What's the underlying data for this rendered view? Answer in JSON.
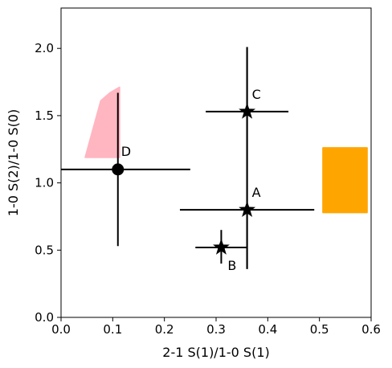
{
  "chart_data": {
    "type": "scatter",
    "xlabel": "2-1 S(1)/1-0 S(1)",
    "ylabel": "1-0 S(2)/1-0 S(0)",
    "xlim": [
      0.0,
      0.6
    ],
    "ylim": [
      0.0,
      2.3
    ],
    "xticks": [
      "0.0",
      "0.1",
      "0.2",
      "0.3",
      "0.4",
      "0.5",
      "0.6"
    ],
    "yticks": [
      "0.0",
      "0.5",
      "1.0",
      "1.5",
      "2.0"
    ],
    "grid": false,
    "points": [
      {
        "label": "A",
        "marker": "star",
        "x": 0.36,
        "y": 0.8,
        "xerr": [
          0.23,
          0.49
        ],
        "yerr": [
          0.36,
          2.01
        ]
      },
      {
        "label": "B",
        "marker": "star",
        "x": 0.31,
        "y": 0.52,
        "xerr": [
          0.26,
          0.36
        ],
        "yerr": [
          0.4,
          0.65
        ]
      },
      {
        "label": "C",
        "marker": "star",
        "x": 0.36,
        "y": 1.53,
        "xerr": [
          0.28,
          0.44
        ],
        "yerr": [
          0.36,
          2.01
        ]
      },
      {
        "label": "D",
        "marker": "circle",
        "x": 0.11,
        "y": 1.1,
        "xerr": [
          0.0,
          0.25
        ],
        "yerr": [
          0.53,
          1.67
        ]
      }
    ],
    "regions": [
      {
        "color": "#ffb6c1",
        "polygon": [
          [
            0.047,
            1.19
          ],
          [
            0.077,
            1.61
          ],
          [
            0.095,
            1.67
          ],
          [
            0.113,
            1.71
          ],
          [
            0.113,
            1.19
          ]
        ]
      },
      {
        "color": "#ffa500",
        "polygon": [
          [
            0.507,
            0.78
          ],
          [
            0.507,
            1.26
          ],
          [
            0.592,
            1.26
          ],
          [
            0.592,
            0.78
          ]
        ]
      }
    ]
  }
}
